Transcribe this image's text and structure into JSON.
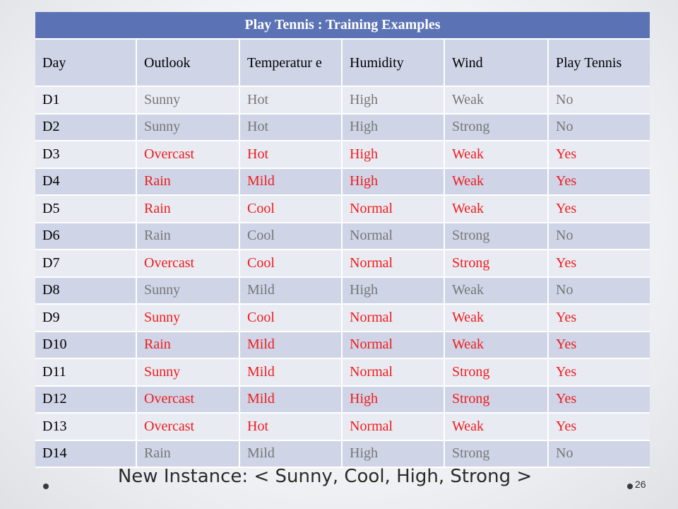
{
  "table": {
    "title": "Play Tennis : Training Examples",
    "headers": [
      "Day",
      "Outlook",
      "Temperatur e",
      "Humidity",
      "Wind",
      "Play Tennis"
    ],
    "rows": [
      {
        "day": "D1",
        "outlook": "Sunny",
        "temperature": "Hot",
        "humidity": "High",
        "wind": "Weak",
        "play": "No",
        "highlight": false
      },
      {
        "day": "D2",
        "outlook": "Sunny",
        "temperature": "Hot",
        "humidity": "High",
        "wind": "Strong",
        "play": "No",
        "highlight": false
      },
      {
        "day": "D3",
        "outlook": "Overcast",
        "temperature": "Hot",
        "humidity": "High",
        "wind": "Weak",
        "play": "Yes",
        "highlight": true
      },
      {
        "day": "D4",
        "outlook": "Rain",
        "temperature": "Mild",
        "humidity": "High",
        "wind": "Weak",
        "play": "Yes",
        "highlight": true
      },
      {
        "day": "D5",
        "outlook": "Rain",
        "temperature": "Cool",
        "humidity": "Normal",
        "wind": "Weak",
        "play": "Yes",
        "highlight": true
      },
      {
        "day": "D6",
        "outlook": "Rain",
        "temperature": "Cool",
        "humidity": "Normal",
        "wind": "Strong",
        "play": "No",
        "highlight": false
      },
      {
        "day": "D7",
        "outlook": "Overcast",
        "temperature": "Cool",
        "humidity": "Normal",
        "wind": "Strong",
        "play": "Yes",
        "highlight": true
      },
      {
        "day": "D8",
        "outlook": "Sunny",
        "temperature": "Mild",
        "humidity": "High",
        "wind": "Weak",
        "play": "No",
        "highlight": false
      },
      {
        "day": "D9",
        "outlook": "Sunny",
        "temperature": "Cool",
        "humidity": "Normal",
        "wind": "Weak",
        "play": "Yes",
        "highlight": true
      },
      {
        "day": "D10",
        "outlook": "Rain",
        "temperature": "Mild",
        "humidity": "Normal",
        "wind": "Weak",
        "play": "Yes",
        "highlight": true
      },
      {
        "day": "D11",
        "outlook": "Sunny",
        "temperature": "Mild",
        "humidity": "Normal",
        "wind": "Strong",
        "play": "Yes",
        "highlight": true
      },
      {
        "day": "D12",
        "outlook": "Overcast",
        "temperature": "Mild",
        "humidity": "High",
        "wind": "Strong",
        "play": "Yes",
        "highlight": true
      },
      {
        "day": "D13",
        "outlook": "Overcast",
        "temperature": "Hot",
        "humidity": "Normal",
        "wind": "Weak",
        "play": "Yes",
        "highlight": true
      },
      {
        "day": "D14",
        "outlook": "Rain",
        "temperature": "Mild",
        "humidity": "High",
        "wind": "Strong",
        "play": "No",
        "highlight": false
      }
    ]
  },
  "new_instance": "New Instance: < Sunny, Cool, High, Strong >",
  "page_number": "26",
  "colors": {
    "title_bg": "#5b73b4",
    "positive_text": "#ee1c1c",
    "negative_text": "#777777",
    "row_light": "#e9ebf3",
    "row_dark": "#cfd4e6"
  }
}
